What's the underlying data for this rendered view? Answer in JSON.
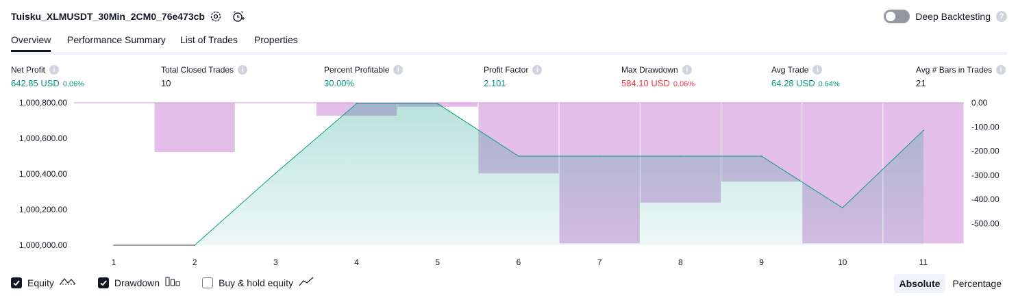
{
  "header": {
    "title": "Tuisku_XLMUSDT_30Min_2CM0_76e473cb",
    "settings_icon": "gear-icon",
    "alert_icon": "add-alert-icon",
    "deep_backtesting_label": "Deep Backtesting",
    "deep_backtesting_enabled": false,
    "help_glyph": "?"
  },
  "tabs": [
    {
      "label": "Overview",
      "active": true
    },
    {
      "label": "Performance Summary",
      "active": false
    },
    {
      "label": "List of Trades",
      "active": false
    },
    {
      "label": "Properties",
      "active": false
    }
  ],
  "metrics": [
    {
      "label": "Net Profit",
      "value": "642.85 USD",
      "pct": "0.06%",
      "tone": "positive"
    },
    {
      "label": "Total Closed Trades",
      "value": "10",
      "pct": "",
      "tone": "neutral"
    },
    {
      "label": "Percent Profitable",
      "value": "30.00%",
      "pct": "",
      "tone": "positive"
    },
    {
      "label": "Profit Factor",
      "value": "2.101",
      "pct": "",
      "tone": "positive"
    },
    {
      "label": "Max Drawdown",
      "value": "584.10 USD",
      "pct": "0.06%",
      "tone": "negative"
    },
    {
      "label": "Avg Trade",
      "value": "64.28 USD",
      "pct": "0.64%",
      "tone": "positive"
    },
    {
      "label": "Avg # Bars in Trades",
      "value": "21",
      "pct": "",
      "tone": "neutral"
    }
  ],
  "chart_data": {
    "type": "line",
    "x": [
      1,
      2,
      3,
      4,
      5,
      6,
      7,
      8,
      9,
      10,
      11
    ],
    "y_left_ticks": [
      "1,000,800.00",
      "1,000,600.00",
      "1,000,400.00",
      "1,000,200.00",
      "1,000,000.00"
    ],
    "y_left_range": [
      1000000,
      1000800
    ],
    "y_right_ticks": [
      "0.00",
      "-100.00",
      "-200.00",
      "-300.00",
      "-400.00",
      "-500.00"
    ],
    "y_right_range": [
      -590,
      0
    ],
    "series": [
      {
        "name": "Equity",
        "axis": "left",
        "values": [
          1000000,
          1000000,
          1000405,
          1000795,
          1000795,
          1000500,
          1000500,
          1000500,
          1000500,
          1000210,
          1000645
        ],
        "color": "#089981"
      },
      {
        "name": "Drawdown",
        "axis": "right",
        "values": [
          0,
          -206,
          0,
          -55,
          -18,
          -294,
          -584,
          -415,
          -328,
          -584,
          -584
        ],
        "color": "#ce93d8"
      }
    ],
    "baseline_equity_color": "#787b86"
  },
  "legend": {
    "items": [
      {
        "label": "Equity",
        "checked": true,
        "icon": "equity-line-icon"
      },
      {
        "label": "Drawdown",
        "checked": true,
        "icon": "drawdown-bars-icon"
      },
      {
        "label": "Buy & hold equity",
        "checked": false,
        "icon": "buy-hold-line-icon"
      }
    ]
  },
  "modes": [
    {
      "label": "Absolute",
      "active": true
    },
    {
      "label": "Percentage",
      "active": false
    }
  ]
}
